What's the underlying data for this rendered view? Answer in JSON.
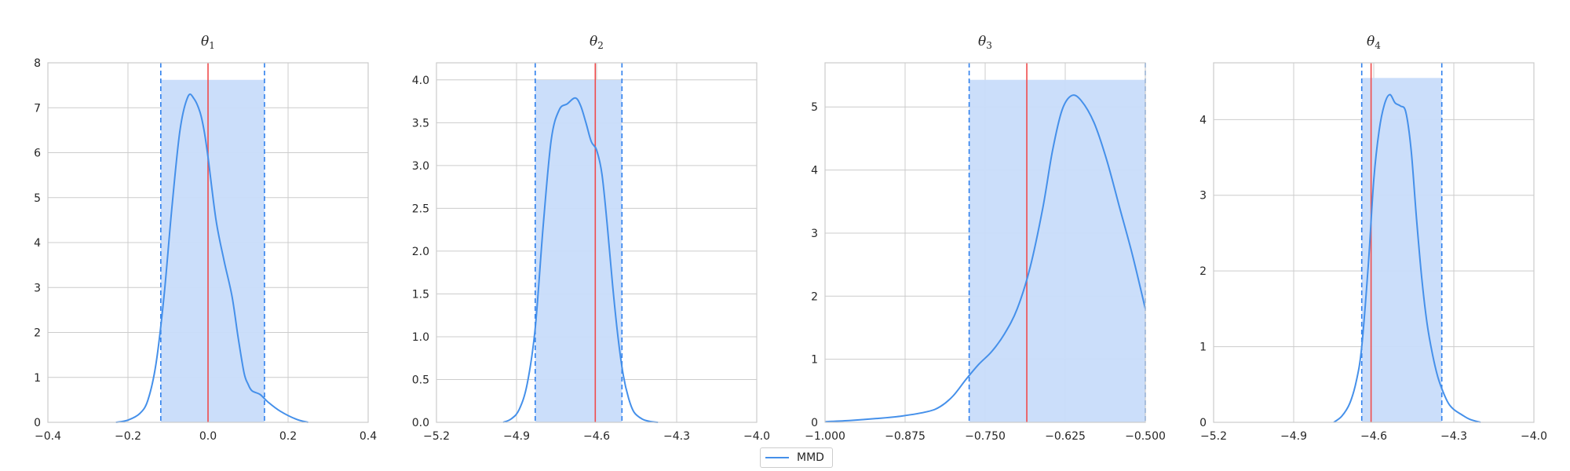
{
  "colors": {
    "kde": "#4590ea",
    "interval_fill": "#c8dcfa",
    "interval_edge": "#2f80ed",
    "truth": "#f04b4b",
    "grid": "#cccccc"
  },
  "legend": {
    "entries": [
      {
        "label": "MMD",
        "color": "#4590ea"
      }
    ],
    "placement": "bottom-center"
  },
  "chart_data": [
    {
      "type": "line",
      "title": "θ",
      "title_sub": "1",
      "xlim": [
        -0.4,
        0.4
      ],
      "ylim": [
        0,
        8
      ],
      "xticks": [
        -0.4,
        -0.2,
        0.0,
        0.2,
        0.4
      ],
      "xtick_labels": [
        "−0.4",
        "−0.2",
        "0.0",
        "0.2",
        "0.4"
      ],
      "yticks": [
        0,
        1,
        2,
        3,
        4,
        5,
        6,
        7,
        8
      ],
      "ytick_labels": [
        "0",
        "1",
        "2",
        "3",
        "4",
        "5",
        "6",
        "7",
        "8"
      ],
      "grid": true,
      "interval": {
        "low": -0.118,
        "high": 0.141,
        "height": 7.62
      },
      "true_value": 0.0,
      "series": [
        {
          "name": "MMD",
          "x": [
            -0.23,
            -0.2,
            -0.17,
            -0.15,
            -0.13,
            -0.11,
            -0.09,
            -0.07,
            -0.05,
            -0.035,
            -0.02,
            -0.01,
            0.0,
            0.02,
            0.04,
            0.06,
            0.075,
            0.09,
            0.1,
            0.11,
            0.13,
            0.15,
            0.18,
            0.22,
            0.25
          ],
          "y": [
            0.0,
            0.05,
            0.2,
            0.5,
            1.3,
            2.8,
            4.8,
            6.5,
            7.25,
            7.2,
            6.9,
            6.5,
            5.9,
            4.5,
            3.6,
            2.8,
            1.9,
            1.1,
            0.85,
            0.7,
            0.62,
            0.45,
            0.25,
            0.07,
            0.0
          ]
        }
      ]
    },
    {
      "type": "line",
      "title": "θ",
      "title_sub": "2",
      "xlim": [
        -5.2,
        -4.0
      ],
      "ylim": [
        0,
        4.2
      ],
      "xticks": [
        -5.2,
        -4.9,
        -4.6,
        -4.3,
        -4.0
      ],
      "xtick_labels": [
        "−5.2",
        "−4.9",
        "−4.6",
        "−4.3",
        "−4.0"
      ],
      "yticks": [
        0.0,
        0.5,
        1.0,
        1.5,
        2.0,
        2.5,
        3.0,
        3.5,
        4.0
      ],
      "ytick_labels": [
        "0.0",
        "0.5",
        "1.0",
        "1.5",
        "2.0",
        "2.5",
        "3.0",
        "3.5",
        "4.0"
      ],
      "grid": true,
      "interval": {
        "low": -4.83,
        "high": -4.505,
        "height": 4.0
      },
      "true_value": -4.605,
      "series": [
        {
          "name": "MMD",
          "x": [
            -4.95,
            -4.92,
            -4.89,
            -4.86,
            -4.83,
            -4.8,
            -4.77,
            -4.74,
            -4.71,
            -4.68,
            -4.66,
            -4.64,
            -4.62,
            -4.6,
            -4.58,
            -4.56,
            -4.54,
            -4.52,
            -4.5,
            -4.48,
            -4.46,
            -4.43,
            -4.4,
            -4.37
          ],
          "y": [
            0.0,
            0.04,
            0.15,
            0.45,
            1.1,
            2.3,
            3.3,
            3.65,
            3.72,
            3.79,
            3.7,
            3.5,
            3.28,
            3.18,
            2.9,
            2.3,
            1.6,
            1.0,
            0.55,
            0.28,
            0.12,
            0.04,
            0.01,
            0.0
          ]
        }
      ]
    },
    {
      "type": "line",
      "title": "θ",
      "title_sub": "3",
      "xlim": [
        -1.0,
        -0.5
      ],
      "ylim": [
        0,
        5.7
      ],
      "xticks": [
        -1.0,
        -0.875,
        -0.75,
        -0.625,
        -0.5
      ],
      "xtick_labels": [
        "−1.000",
        "−0.875",
        "−0.750",
        "−0.625",
        "−0.500"
      ],
      "yticks": [
        0,
        1,
        2,
        3,
        4,
        5
      ],
      "ytick_labels": [
        "0",
        "1",
        "2",
        "3",
        "4",
        "5"
      ],
      "grid": true,
      "interval": {
        "low": -0.775,
        "high": -0.5,
        "height": 5.43
      },
      "true_value": -0.685,
      "series": [
        {
          "name": "MMD",
          "x": [
            -1.0,
            -0.96,
            -0.92,
            -0.88,
            -0.84,
            -0.82,
            -0.8,
            -0.78,
            -0.76,
            -0.74,
            -0.72,
            -0.7,
            -0.68,
            -0.66,
            -0.645,
            -0.63,
            -0.615,
            -0.6,
            -0.58,
            -0.56,
            -0.54,
            -0.52,
            -0.5
          ],
          "y": [
            0.01,
            0.03,
            0.06,
            0.1,
            0.17,
            0.25,
            0.42,
            0.68,
            0.92,
            1.12,
            1.4,
            1.8,
            2.45,
            3.4,
            4.3,
            4.95,
            5.18,
            5.1,
            4.75,
            4.15,
            3.4,
            2.65,
            1.8
          ]
        }
      ]
    },
    {
      "type": "line",
      "title": "θ",
      "title_sub": "4",
      "xlim": [
        -5.2,
        -4.0
      ],
      "ylim": [
        0,
        4.75
      ],
      "xticks": [
        -5.2,
        -4.9,
        -4.6,
        -4.3,
        -4.0
      ],
      "xtick_labels": [
        "−5.2",
        "−4.9",
        "−4.6",
        "−4.3",
        "−4.0"
      ],
      "yticks": [
        0,
        1,
        2,
        3,
        4
      ],
      "ytick_labels": [
        "0",
        "1",
        "2",
        "3",
        "4"
      ],
      "grid": true,
      "interval": {
        "low": -4.645,
        "high": -4.345,
        "height": 4.55
      },
      "true_value": -4.61,
      "series": [
        {
          "name": "MMD",
          "x": [
            -4.75,
            -4.72,
            -4.69,
            -4.665,
            -4.645,
            -4.62,
            -4.6,
            -4.58,
            -4.56,
            -4.54,
            -4.52,
            -4.5,
            -4.48,
            -4.46,
            -4.44,
            -4.42,
            -4.4,
            -4.38,
            -4.36,
            -4.34,
            -4.32,
            -4.3,
            -4.27,
            -4.24,
            -4.2
          ],
          "y": [
            0.0,
            0.08,
            0.25,
            0.55,
            1.0,
            2.1,
            3.2,
            3.85,
            4.2,
            4.33,
            4.22,
            4.18,
            4.1,
            3.6,
            2.7,
            1.9,
            1.3,
            0.9,
            0.6,
            0.4,
            0.25,
            0.17,
            0.1,
            0.04,
            0.0
          ]
        }
      ]
    }
  ]
}
